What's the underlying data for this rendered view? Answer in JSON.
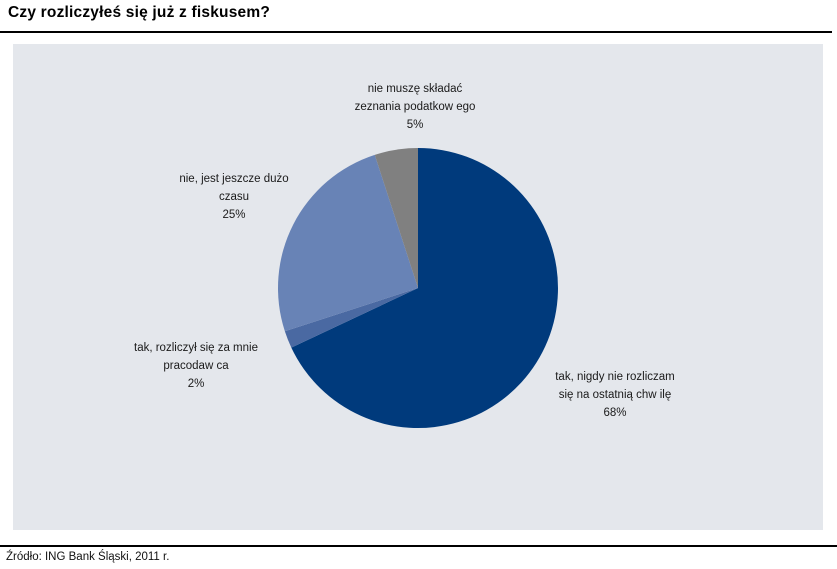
{
  "page": {
    "title": "Czy rozliczyłeś się już z fiskusem?",
    "source": "Źródło: ING Bank Śląski, 2011 r."
  },
  "colors": {
    "panel_bg": "#e4e7ec",
    "navy": "#003a7c",
    "medium_blue": "#4a69a2",
    "light_blue": "#6883b6",
    "gray": "#808080",
    "rule": "#000000",
    "label_text": "#1a1a1a"
  },
  "chart_data": {
    "type": "pie",
    "title": "Czy rozliczyłeś się już z fiskusem?",
    "start_angle_deg": 0,
    "direction": "clockwise",
    "legend": "none",
    "labels_position": "outside",
    "slices": [
      {
        "label": "tak, nigdy nie rozliczam się na ostatnią chw ilę",
        "value": 68,
        "color": "#003a7c"
      },
      {
        "label": "tak, rozliczył się za mnie pracodaw ca",
        "value": 2,
        "color": "#4a69a2"
      },
      {
        "label": "nie, jest jeszcze dużo czasu",
        "value": 25,
        "color": "#6883b6"
      },
      {
        "label": "nie muszę składać zeznania podatkow ego",
        "value": 5,
        "color": "#808080"
      }
    ]
  },
  "labels": {
    "top": {
      "line1": "nie muszę składać",
      "line2": "zeznania podatkow ego",
      "pct": "5%"
    },
    "left": {
      "line1": "nie, jest jeszcze dużo",
      "line2": "czasu",
      "pct": "25%"
    },
    "bottom_left": {
      "line1": "tak, rozliczył się za mnie",
      "line2": "pracodaw ca",
      "pct": "2%"
    },
    "right": {
      "line1": "tak, nigdy nie rozliczam",
      "line2": "się na ostatnią chw ilę",
      "pct": "68%"
    }
  }
}
